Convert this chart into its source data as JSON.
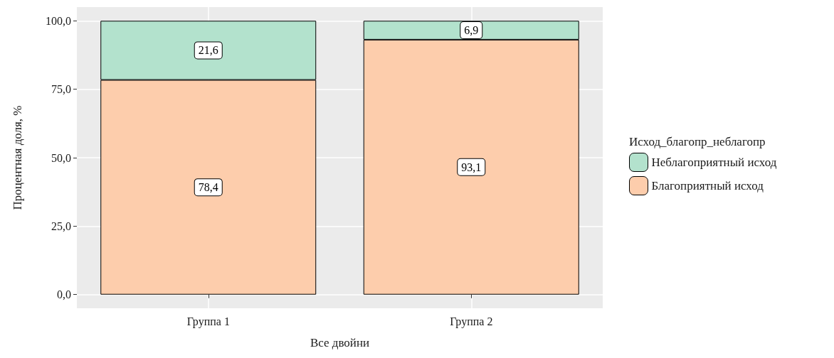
{
  "chart_data": {
    "type": "bar",
    "stacked": true,
    "xlabel": "Все двойни",
    "ylabel": "Процентная доля, %",
    "legend_title": "Исход_благопр_неблагопр",
    "categories": [
      "Группа 1",
      "Группа 2"
    ],
    "series": [
      {
        "name": "Благоприятный исход",
        "color": "#fdcdac",
        "values": [
          78.4,
          93.1
        ],
        "value_labels": [
          "78,4",
          "93,1"
        ]
      },
      {
        "name": "Неблагоприятный исход",
        "color": "#b3e2cd",
        "values": [
          21.6,
          6.9
        ],
        "value_labels": [
          "21,6",
          "6,9"
        ]
      }
    ],
    "ylim": [
      -5,
      105
    ],
    "yticks": [
      {
        "value": 0,
        "label": "0,0"
      },
      {
        "value": 25,
        "label": "25,0"
      },
      {
        "value": 50,
        "label": "50,0"
      },
      {
        "value": 75,
        "label": "75,0"
      },
      {
        "value": 100,
        "label": "100,0"
      }
    ],
    "grid": true,
    "legend": "right"
  }
}
